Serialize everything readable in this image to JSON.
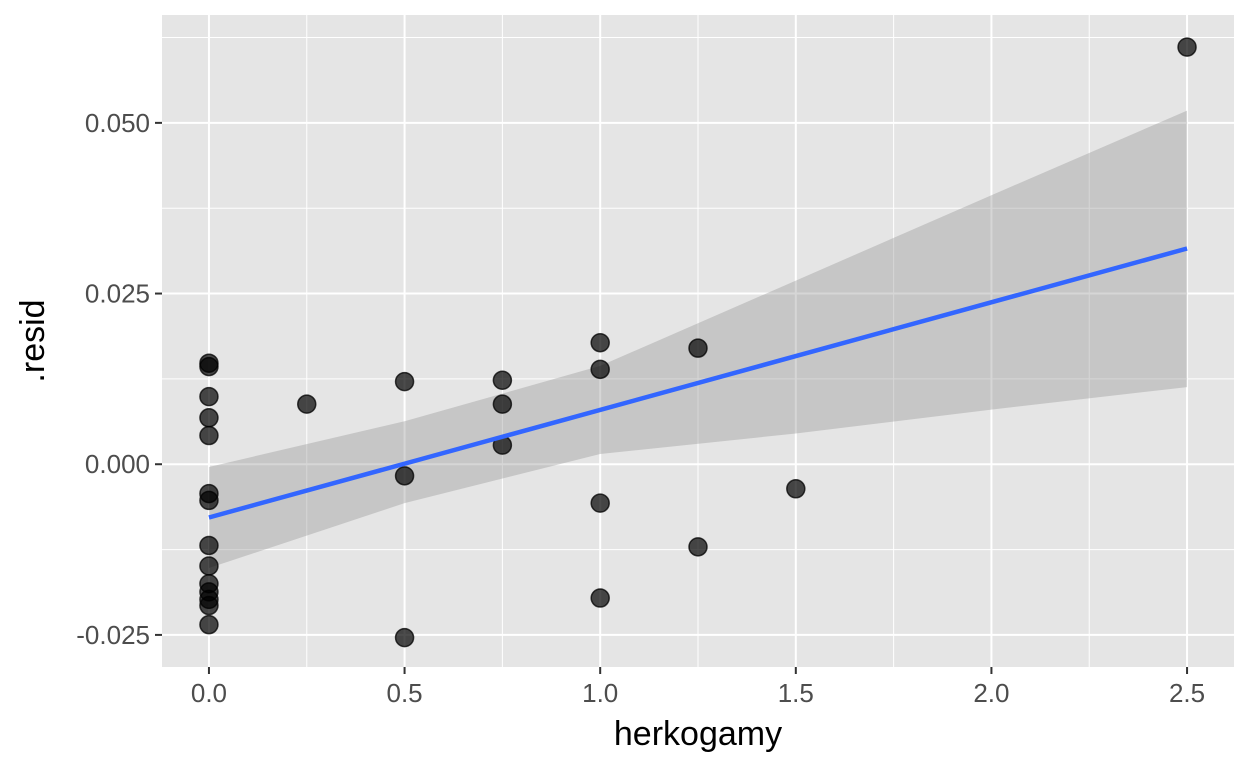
{
  "chart_data": {
    "type": "scatter",
    "title": "",
    "xlabel": "herkogamy",
    "ylabel": ".resid",
    "xlim": [
      -0.12,
      2.62
    ],
    "ylim": [
      -0.0297,
      0.0658
    ],
    "x_ticks": [
      0,
      0.5,
      1,
      1.5,
      2,
      2.5
    ],
    "x_tick_labels": [
      "0.0",
      "0.5",
      "1.0",
      "1.5",
      "2.0",
      "2.5"
    ],
    "y_ticks": [
      -0.025,
      0,
      0.025,
      0.05
    ],
    "y_tick_labels": [
      "-0.025",
      "0.000",
      "0.025",
      "0.050"
    ],
    "grid": true,
    "points": [
      {
        "x": 0,
        "y": 0.0148
      },
      {
        "x": 0,
        "y": 0.0143
      },
      {
        "x": 0,
        "y": 0.0099
      },
      {
        "x": 0,
        "y": 0.0068
      },
      {
        "x": 0,
        "y": 0.0042
      },
      {
        "x": 0,
        "y": -0.0043
      },
      {
        "x": 0,
        "y": -0.0053
      },
      {
        "x": 0,
        "y": -0.0119
      },
      {
        "x": 0,
        "y": -0.0149
      },
      {
        "x": 0,
        "y": -0.0175
      },
      {
        "x": 0,
        "y": -0.0187
      },
      {
        "x": 0,
        "y": -0.0198
      },
      {
        "x": 0,
        "y": -0.0207
      },
      {
        "x": 0,
        "y": -0.0235
      },
      {
        "x": 0.25,
        "y": 0.0088
      },
      {
        "x": 0.5,
        "y": 0.0121
      },
      {
        "x": 0.5,
        "y": -0.0017
      },
      {
        "x": 0.5,
        "y": -0.0254
      },
      {
        "x": 0.75,
        "y": 0.0123
      },
      {
        "x": 0.75,
        "y": 0.0088
      },
      {
        "x": 0.75,
        "y": 0.0028
      },
      {
        "x": 1,
        "y": 0.0178
      },
      {
        "x": 1,
        "y": 0.0139
      },
      {
        "x": 1,
        "y": -0.0057
      },
      {
        "x": 1,
        "y": -0.0196
      },
      {
        "x": 1.25,
        "y": 0.017
      },
      {
        "x": 1.25,
        "y": -0.0121
      },
      {
        "x": 1.5,
        "y": -0.0036
      },
      {
        "x": 2.5,
        "y": 0.0611
      }
    ],
    "fit_line": {
      "x": [
        0,
        2.5
      ],
      "y": [
        -0.0078,
        0.0316
      ],
      "color": "#3366ff"
    },
    "confidence_band": {
      "x": [
        0,
        0.5,
        1,
        1.5,
        2,
        2.5
      ],
      "lower": [
        -0.0152,
        -0.0057,
        0.0015,
        0.0045,
        0.008,
        0.0113
      ],
      "upper": [
        -0.0004,
        0.0063,
        0.0144,
        0.0269,
        0.0394,
        0.0518
      ]
    },
    "colors": {
      "panel": "#e5e5e5",
      "grid": "#ffffff",
      "point": "#000000",
      "band": "#999999"
    }
  }
}
